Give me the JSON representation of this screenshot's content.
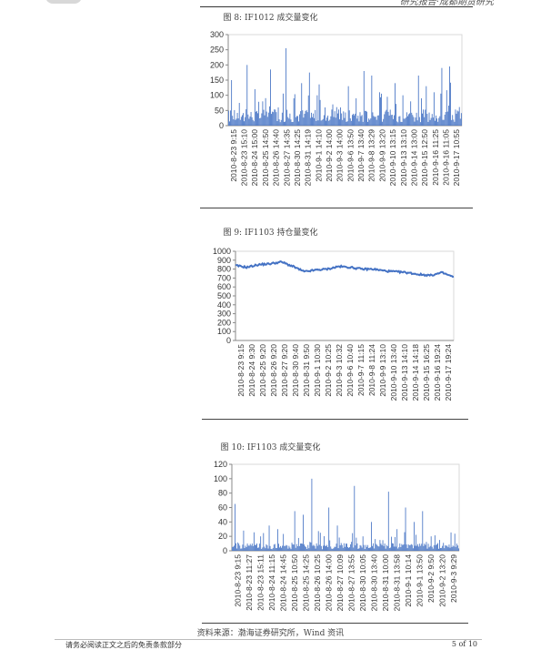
{
  "header": {
    "text": "研究报告·成都期货研究"
  },
  "figures": [
    {
      "title": "图 8:  IF1012 成交量变化"
    },
    {
      "title": "图 9:  IF1103 持仓量变化"
    },
    {
      "title": "图 10:  IF1103 成交量变化"
    }
  ],
  "chart_data": [
    {
      "type": "bar",
      "title": "",
      "xlabel": "",
      "ylabel": "",
      "ylim": [
        0,
        300
      ],
      "yticks": [
        0,
        50,
        100,
        150,
        200,
        250,
        300
      ],
      "color": "#4472c4",
      "categories": [
        "2010-8-23 9:15",
        "2010-8-23 15:10",
        "2010-8-24 15:00",
        "2010-8-25 14:50",
        "2010-8-26 14:40",
        "2010-8-27 14:35",
        "2010-8-30 14:25",
        "2010-8-31 14:19",
        "2010-9-1 14:10",
        "2010-9-2 14:00",
        "2010-9-3 14:00",
        "2010-9-6 13:50",
        "2010-9-7 13:40",
        "2010-9-8 13:29",
        "2010-9-9 13:20",
        "2010-9-10 13:15",
        "2010-9-13 13:10",
        "2010-9-14 13:00",
        "2010-9-15 12:50",
        "2010-9-16 11:25",
        "2010-9-16 11:05",
        "2010-9-17 10:55"
      ],
      "peaks": [
        150,
        75,
        200,
        120,
        80,
        185,
        60,
        255,
        90,
        140,
        175,
        100,
        60,
        70,
        60,
        130,
        90,
        180,
        165,
        110,
        95,
        140,
        100,
        80,
        165,
        130,
        110,
        190,
        195
      ]
    },
    {
      "type": "line",
      "title": "",
      "xlabel": "",
      "ylabel": "",
      "ylim": [
        0,
        1000
      ],
      "yticks": [
        0,
        100,
        200,
        300,
        400,
        500,
        600,
        700,
        800,
        900,
        1000
      ],
      "color": "#4472c4",
      "categories": [
        "2010-8-23 9:15",
        "2010-8-24 9:30",
        "2010-8-25 9:20",
        "2010-8-26 9:20",
        "2010-8-27 9:20",
        "2010-8-30 9:40",
        "2010-8-31 9:50",
        "2010-9-1 10:30",
        "2010-9-2 10:25",
        "2010-9-3 10:32",
        "2010-9-6 10:40",
        "2010-9-7 11:15",
        "2010-9-8 11:24",
        "2010-9-9 13:10",
        "2010-9-10 13:40",
        "2010-9-13 14:10",
        "2010-9-14 14:18",
        "2010-9-15 16:25",
        "2010-9-16 19:24",
        "2010-9-17 19:24"
      ],
      "values": [
        840,
        820,
        850,
        860,
        880,
        830,
        770,
        790,
        800,
        830,
        820,
        800,
        800,
        780,
        770,
        760,
        740,
        730,
        760,
        710
      ]
    },
    {
      "type": "bar",
      "title": "",
      "xlabel": "",
      "ylabel": "",
      "ylim": [
        0,
        120
      ],
      "yticks": [
        0,
        20,
        40,
        60,
        80,
        100,
        120
      ],
      "color": "#4472c4",
      "categories": [
        "2010-8-23 9:15",
        "2010-8-23 11:27",
        "2010-8-23 15:11",
        "2010-8-24 11:15",
        "2010-8-24 14:45",
        "2010-8-25 10:50",
        "2010-8-25 14:25",
        "2010-8-26 10:25",
        "2010-8-26 14:00",
        "2010-8-27 10:09",
        "2010-8-27 13:55",
        "2010-8-30 10:05",
        "2010-8-30 13:40",
        "2010-8-31 10:00",
        "2010-8-31 13:58",
        "2010-9-1 10:14",
        "2010-9-1 13:50",
        "2010-9-2 9:50",
        "2010-9-2 13:20",
        "2010-9-3 9:29"
      ],
      "peaks": [
        65,
        28,
        10,
        20,
        35,
        30,
        8,
        55,
        50,
        100,
        25,
        60,
        35,
        10,
        90,
        20,
        40,
        15,
        82,
        30,
        60,
        40,
        55,
        20,
        15
      ]
    }
  ],
  "source": "资料来源：渤海证券研究所，Wind 资讯",
  "footer": {
    "disclaimer": "请务必阅读正文之后的免责条款部分",
    "page": "5 of 10"
  }
}
